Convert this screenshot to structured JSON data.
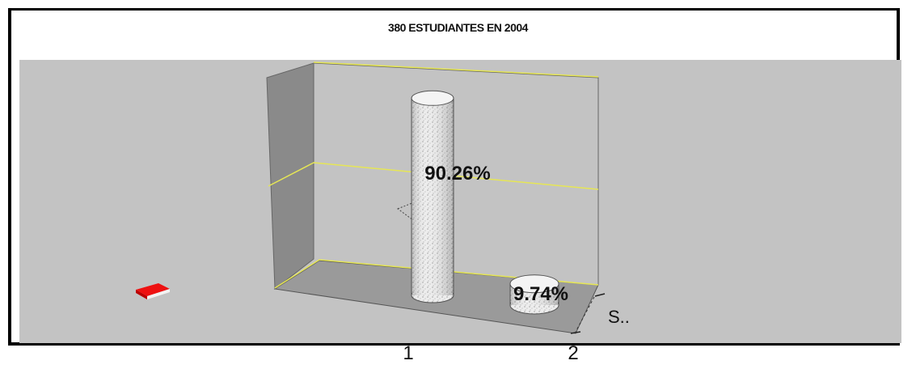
{
  "chart_data": {
    "type": "bar",
    "title": "380 ESTUDIANTES EN 2004",
    "categories": [
      "1",
      "2"
    ],
    "series": [
      {
        "name": "S..",
        "values": [
          90.26,
          9.74
        ]
      }
    ],
    "data_labels": [
      "90.26%",
      "9.74%"
    ],
    "unit": "%",
    "ylim": [
      0,
      100
    ],
    "grid": true,
    "legend": "right"
  },
  "colors": {
    "background": "#c3c3c3",
    "wall": "#8c8c8c",
    "gridline": "#e6e655",
    "bar": "#ececec",
    "marker": "#ee1111"
  },
  "icons": {
    "marker": "red-book-icon"
  }
}
